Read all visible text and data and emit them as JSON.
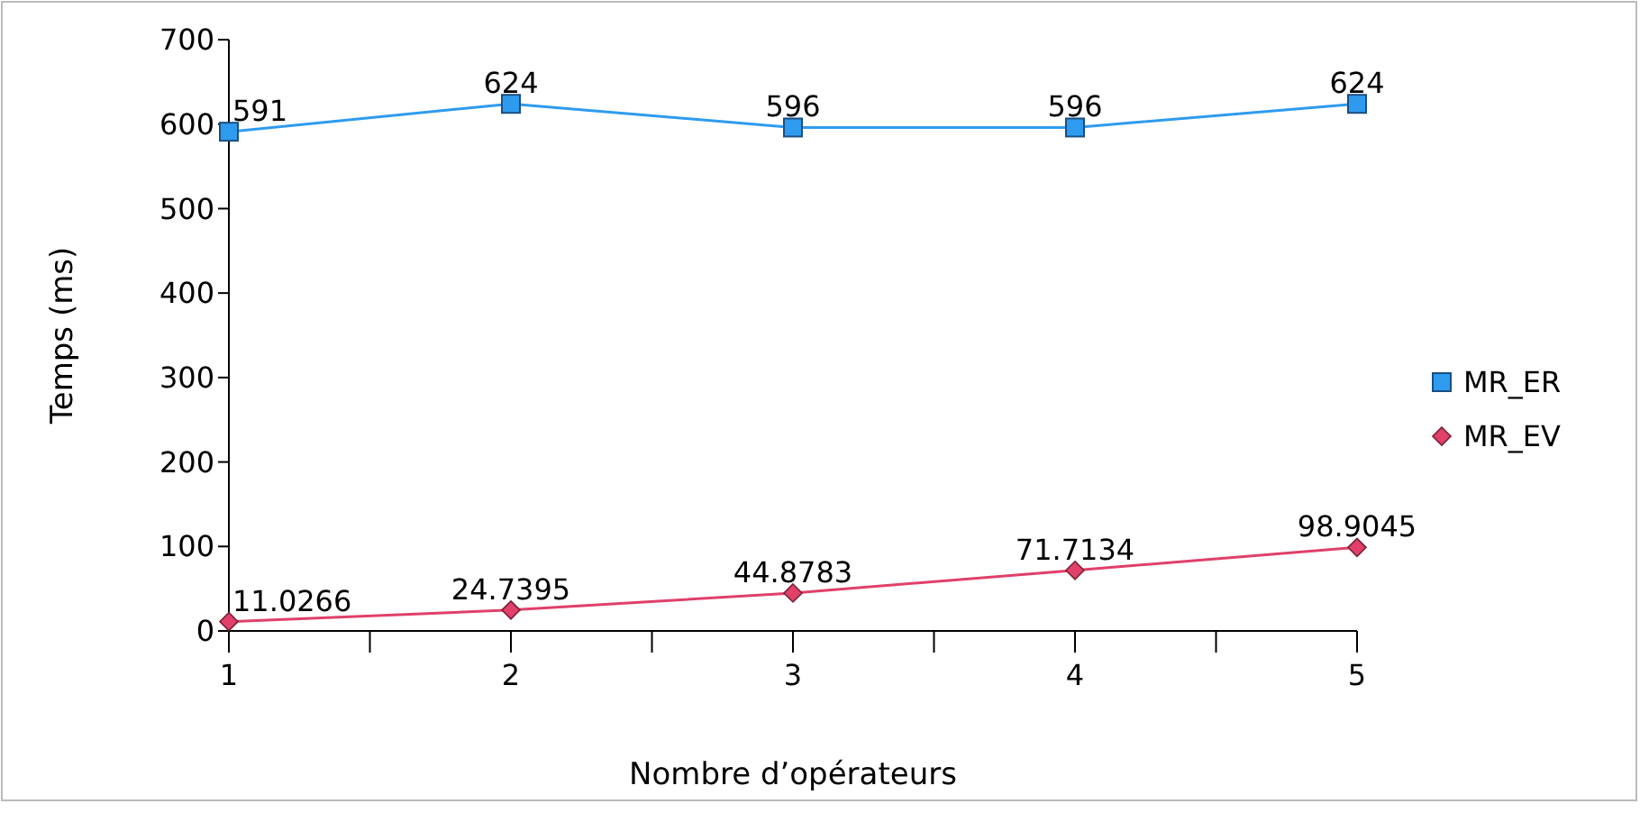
{
  "chart_data": {
    "type": "line",
    "xlabel": "Nombre d’opérateurs",
    "ylabel": "Temps (ms)",
    "x": [
      1,
      2,
      3,
      4,
      5
    ],
    "xlim": [
      1,
      5
    ],
    "xticks": [
      1,
      {
        "value": 1.5,
        "label": null
      },
      2,
      {
        "value": 2.5,
        "label": null
      },
      3,
      {
        "value": 3.5,
        "label": null
      },
      4,
      {
        "value": 4.5,
        "label": null
      },
      5
    ],
    "ylim": [
      0,
      700
    ],
    "yticks": [
      0,
      100,
      200,
      300,
      400,
      500,
      600,
      700
    ],
    "series": [
      {
        "name": "MR_ER",
        "color": "#2f9bef",
        "marker": "square",
        "values": [
          591,
          624,
          596,
          596,
          624
        ]
      },
      {
        "name": "MR_EV",
        "color": "#e0406a",
        "marker": "diamond",
        "values": [
          11.0266,
          24.7395,
          44.8783,
          71.7134,
          98.9045
        ]
      }
    ],
    "data_labels": true,
    "grid": false,
    "legend": "right",
    "line_style": "solid"
  }
}
